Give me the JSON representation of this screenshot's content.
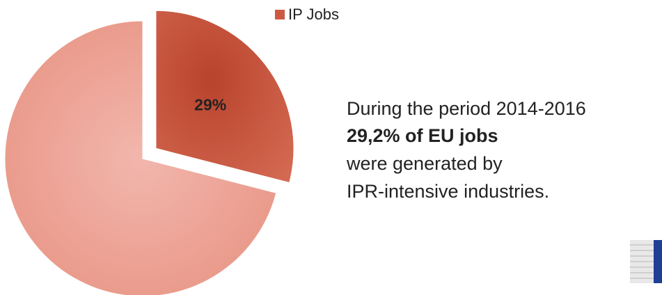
{
  "chart_data": {
    "type": "pie",
    "categories": [
      "IP Jobs",
      null
    ],
    "values": [
      29,
      71
    ],
    "value_labels": [
      "29%",
      null
    ],
    "colors": [
      "#cc5a42",
      "#eda196"
    ],
    "legend": "top",
    "annotations": [
      "During the period 2014-2016",
      "29,2% of EU jobs",
      "were generated by",
      "IPR-intensive industries."
    ]
  }
}
